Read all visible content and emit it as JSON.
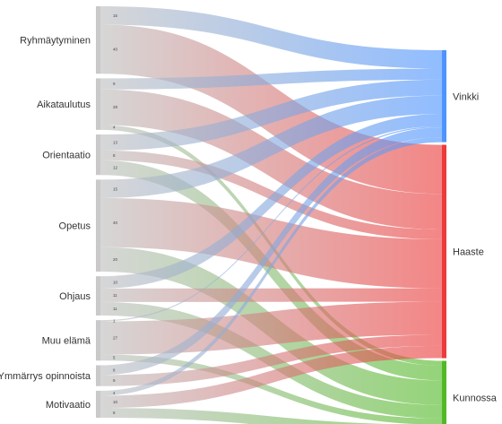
{
  "chart_data": {
    "type": "sankey",
    "title": "",
    "sources": [
      {
        "id": "ryhmaytyminen",
        "label": "Ryhmäytyminen"
      },
      {
        "id": "aikataulutus",
        "label": "Aikataulutus"
      },
      {
        "id": "orientaatio",
        "label": "Orientaatio"
      },
      {
        "id": "opetus",
        "label": "Opetus"
      },
      {
        "id": "ohjaus",
        "label": "Ohjaus"
      },
      {
        "id": "muu_elama",
        "label": "Muu elämä"
      },
      {
        "id": "ymmarrys",
        "label": "Ymmärrys opinnoista"
      },
      {
        "id": "motivaatio",
        "label": "Motivaatio"
      }
    ],
    "targets": [
      {
        "id": "vinkki",
        "label": "Vinkki",
        "color": "#4d94ff"
      },
      {
        "id": "haaste",
        "label": "Haaste",
        "color": "#ec3b3b"
      },
      {
        "id": "kunnossa",
        "label": "Kunnossa",
        "color": "#52b926"
      }
    ],
    "links": [
      {
        "source": "ryhmaytyminen",
        "target": "vinkki",
        "value": 15,
        "label": "15"
      },
      {
        "source": "ryhmaytyminen",
        "target": "haaste",
        "value": 40,
        "label": "40"
      },
      {
        "source": "aikataulutus",
        "target": "vinkki",
        "value": 9,
        "label": "9"
      },
      {
        "source": "aikataulutus",
        "target": "haaste",
        "value": 29,
        "label": "29"
      },
      {
        "source": "aikataulutus",
        "target": "kunnossa",
        "value": 4,
        "label": "4"
      },
      {
        "source": "orientaatio",
        "target": "vinkki",
        "value": 13,
        "label": "13"
      },
      {
        "source": "orientaatio",
        "target": "haaste",
        "value": 8,
        "label": "8"
      },
      {
        "source": "orientaatio",
        "target": "kunnossa",
        "value": 12,
        "label": "12"
      },
      {
        "source": "opetus",
        "target": "vinkki",
        "value": 15,
        "label": "15"
      },
      {
        "source": "opetus",
        "target": "haaste",
        "value": 40,
        "label": "40"
      },
      {
        "source": "opetus",
        "target": "kunnossa",
        "value": 20,
        "label": "20"
      },
      {
        "source": "ohjaus",
        "target": "vinkki",
        "value": 10,
        "label": "10"
      },
      {
        "source": "ohjaus",
        "target": "haaste",
        "value": 11,
        "label": "11"
      },
      {
        "source": "ohjaus",
        "target": "kunnossa",
        "value": 11,
        "label": "11"
      },
      {
        "source": "muu_elama",
        "target": "vinkki",
        "value": 1,
        "label": "1"
      },
      {
        "source": "muu_elama",
        "target": "haaste",
        "value": 27,
        "label": "27"
      },
      {
        "source": "muu_elama",
        "target": "kunnossa",
        "value": 5,
        "label": "5"
      },
      {
        "source": "ymmarrys",
        "target": "vinkki",
        "value": 8,
        "label": "8"
      },
      {
        "source": "ymmarrys",
        "target": "haaste",
        "value": 9,
        "label": "9"
      },
      {
        "source": "motivaatio",
        "target": "vinkki",
        "value": 4,
        "label": "4"
      },
      {
        "source": "motivaatio",
        "target": "haaste",
        "value": 10,
        "label": "10"
      },
      {
        "source": "motivaatio",
        "target": "kunnossa",
        "value": 8,
        "label": "8"
      }
    ]
  }
}
